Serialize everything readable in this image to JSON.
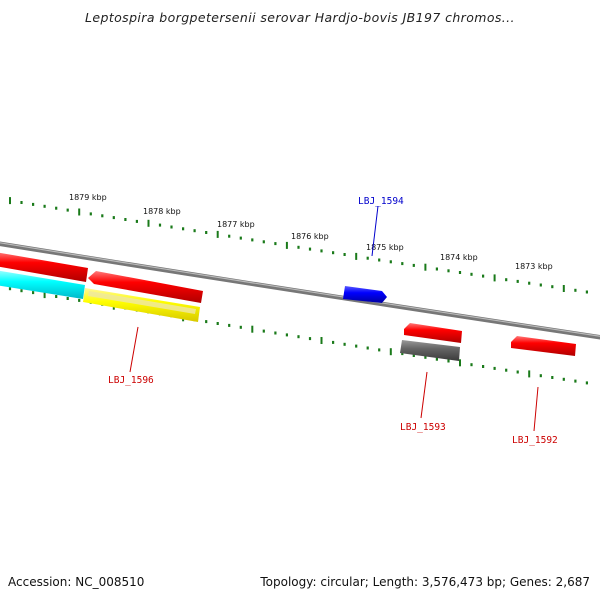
{
  "title": "Leptospira borgpetersenii serovar Hardjo-bovis JB197 chromos...",
  "footer": {
    "accession": "Accession: NC_008510",
    "topology": "Topology: circular; Length: 3,576,473 bp; Genes: 2,687"
  },
  "ruler_labels": [
    "1879 kbp",
    "1878 kbp",
    "1877 kbp",
    "1876 kbp",
    "1875 kbp",
    "1874 kbp",
    "1873 kbp"
  ],
  "genes": [
    {
      "name": "LBJ_1594",
      "color": "#0000cc"
    },
    {
      "name": "LBJ_1596",
      "color": "#cc0000"
    },
    {
      "name": "LBJ_1593",
      "color": "#cc0000"
    },
    {
      "name": "LBJ_1592",
      "color": "#cc0000"
    }
  ],
  "colors": {
    "forward_red": "#ff0000",
    "cyan": "#00ffff",
    "yellow": "#ffff00",
    "blue": "#0000ff",
    "gray": "#666666",
    "ruler_green": "#1a7a1a",
    "backbone": "#888888"
  }
}
